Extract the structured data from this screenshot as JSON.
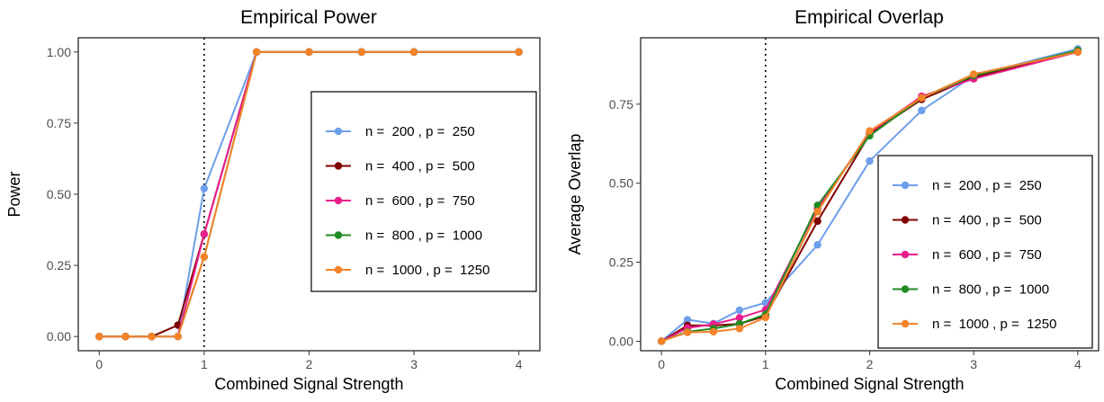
{
  "chart_data": [
    {
      "type": "line",
      "title": "Empirical Power",
      "xlabel": "Combined Signal Strength",
      "ylabel": "Power",
      "xlim": [
        -0.2,
        4.2
      ],
      "ylim": [
        -0.05,
        1.05
      ],
      "xticks": [
        0,
        1,
        2,
        3,
        4
      ],
      "xtick_labels": [
        "0",
        "1",
        "2",
        "3",
        "4"
      ],
      "yticks": [
        0,
        0.25,
        0.5,
        0.75,
        1.0
      ],
      "ytick_labels": [
        "0.00",
        "0.25",
        "0.50",
        "0.75",
        "1.00"
      ],
      "vline": 1,
      "grid": false,
      "legend_position": "right",
      "x": [
        0,
        0.25,
        0.5,
        0.75,
        1,
        1.5,
        2,
        2.5,
        3,
        4
      ],
      "series": [
        {
          "name": "n =  200 , p =  250",
          "color": "#6d9eeb",
          "values": [
            0,
            0,
            0,
            0,
            0.52,
            1,
            1,
            1,
            1,
            1
          ]
        },
        {
          "name": "n =  400 , p =  500",
          "color": "#800000",
          "values": [
            0,
            0,
            0,
            0.04,
            0.36,
            1,
            1,
            1,
            1,
            1
          ]
        },
        {
          "name": "n =  600 , p =  750",
          "color": "#e91e8c",
          "values": [
            0,
            0,
            0,
            0,
            0.36,
            1,
            1,
            1,
            1,
            1
          ]
        },
        {
          "name": "n =  800 , p =  1000",
          "color": "#228b22",
          "values": [
            0,
            0,
            0,
            0,
            0.28,
            1,
            1,
            1,
            1,
            1
          ]
        },
        {
          "name": "n =  1000 , p =  1250",
          "color": "#f5832a",
          "values": [
            0,
            0,
            0,
            0,
            0.28,
            1,
            1,
            1,
            1,
            1
          ]
        }
      ]
    },
    {
      "type": "line",
      "title": "Empirical Overlap",
      "xlabel": "Combined Signal Strength",
      "ylabel": "Average Overlap",
      "xlim": [
        -0.2,
        4.2
      ],
      "ylim": [
        -0.03,
        0.96
      ],
      "xticks": [
        0,
        1,
        2,
        3,
        4
      ],
      "xtick_labels": [
        "0",
        "1",
        "2",
        "3",
        "4"
      ],
      "yticks": [
        0,
        0.25,
        0.5,
        0.75
      ],
      "ytick_labels": [
        "0.00",
        "0.25",
        "0.50",
        "0.75"
      ],
      "vline": 1,
      "grid": false,
      "legend_position": "bottom-right",
      "x": [
        0,
        0.25,
        0.5,
        0.75,
        1,
        1.5,
        2,
        2.5,
        3,
        4
      ],
      "series": [
        {
          "name": "n =  200 , p =  250",
          "color": "#6d9eeb",
          "values": [
            0,
            0.068,
            0.056,
            0.098,
            0.122,
            0.305,
            0.57,
            0.73,
            0.84,
            0.925
          ]
        },
        {
          "name": "n =  400 , p =  500",
          "color": "#800000",
          "values": [
            0,
            0.05,
            0.05,
            0.055,
            0.08,
            0.38,
            0.655,
            0.765,
            0.835,
            0.915
          ]
        },
        {
          "name": "n =  600 , p =  750",
          "color": "#e91e8c",
          "values": [
            0,
            0.042,
            0.054,
            0.074,
            0.1,
            0.42,
            0.66,
            0.775,
            0.83,
            0.915
          ]
        },
        {
          "name": "n =  800 , p =  1000",
          "color": "#228b22",
          "values": [
            0,
            0.03,
            0.04,
            0.055,
            0.085,
            0.43,
            0.65,
            0.77,
            0.84,
            0.92
          ]
        },
        {
          "name": "n =  1000 , p =  1250",
          "color": "#f5832a",
          "values": [
            0,
            0.028,
            0.03,
            0.04,
            0.075,
            0.41,
            0.665,
            0.77,
            0.845,
            0.915
          ]
        }
      ]
    }
  ]
}
